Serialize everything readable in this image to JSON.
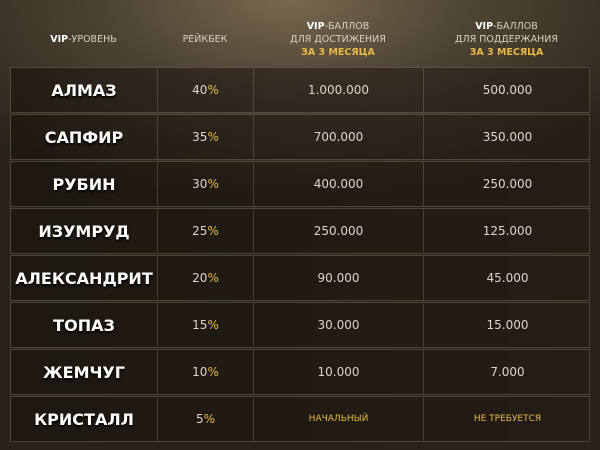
{
  "header": {
    "level": {
      "bold": "VIP",
      "rest": "-УРОВЕНЬ"
    },
    "rakeback": "РЕЙКБЕК",
    "reach": {
      "bold": "VIP",
      "rest": "-БАЛЛОВ",
      "line2": "ДЛЯ ДОСТИЖЕНИЯ",
      "line3": "ЗА 3 МЕСЯЦА"
    },
    "maintain": {
      "bold": "VIP",
      "rest": "-БАЛЛОВ",
      "line2": "ДЛЯ ПОДДЕРЖАНИЯ",
      "line3": "ЗА 3 МЕСЯЦА"
    }
  },
  "accent_color": "#e7b94a",
  "rows": [
    {
      "level": "АЛМАЗ",
      "rakeback": "40",
      "reach": "1.000.000",
      "maintain": "500.000"
    },
    {
      "level": "САПФИР",
      "rakeback": "35",
      "reach": "700.000",
      "maintain": "350.000"
    },
    {
      "level": "РУБИН",
      "rakeback": "30",
      "reach": "400.000",
      "maintain": "250.000"
    },
    {
      "level": "ИЗУМРУД",
      "rakeback": "25",
      "reach": "250.000",
      "maintain": "125.000"
    },
    {
      "level": "АЛЕКСАНДРИТ",
      "rakeback": "20",
      "reach": "90.000",
      "maintain": "45.000"
    },
    {
      "level": "ТОПАЗ",
      "rakeback": "15",
      "reach": "30.000",
      "maintain": "15.000"
    },
    {
      "level": "ЖЕМЧУГ",
      "rakeback": "10",
      "reach": "10.000",
      "maintain": "7.000"
    },
    {
      "level": "КРИСТАЛЛ",
      "rakeback": "5",
      "reach": "НАЧАЛЬНЫЙ",
      "maintain": "НЕ ТРЕБУЕТСЯ",
      "special": true
    }
  ],
  "percent_sign": "%"
}
